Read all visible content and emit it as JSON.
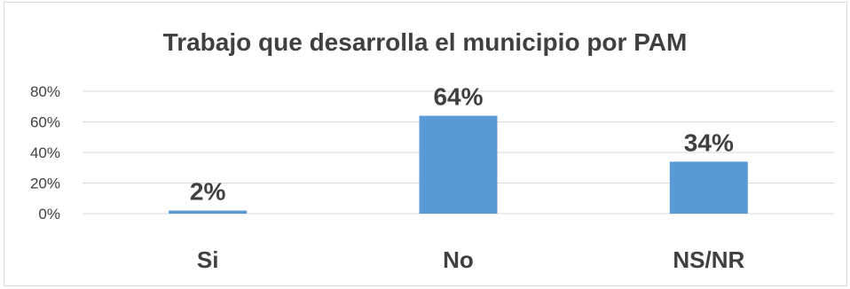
{
  "chart_data": {
    "type": "bar",
    "title": "Trabajo que desarrolla el municipio por PAM",
    "categories": [
      "Si",
      "No",
      "NS/NR"
    ],
    "values": [
      2,
      64,
      34
    ],
    "data_labels": [
      "2%",
      "64%",
      "34%"
    ],
    "y_ticks": [
      "0%",
      "20%",
      "40%",
      "60%",
      "80%"
    ],
    "ylim": [
      0,
      80
    ],
    "xlabel": "",
    "ylabel": "",
    "grid": true,
    "bar_color": "#5b9bd5",
    "grid_color": "#d9d9d9"
  }
}
